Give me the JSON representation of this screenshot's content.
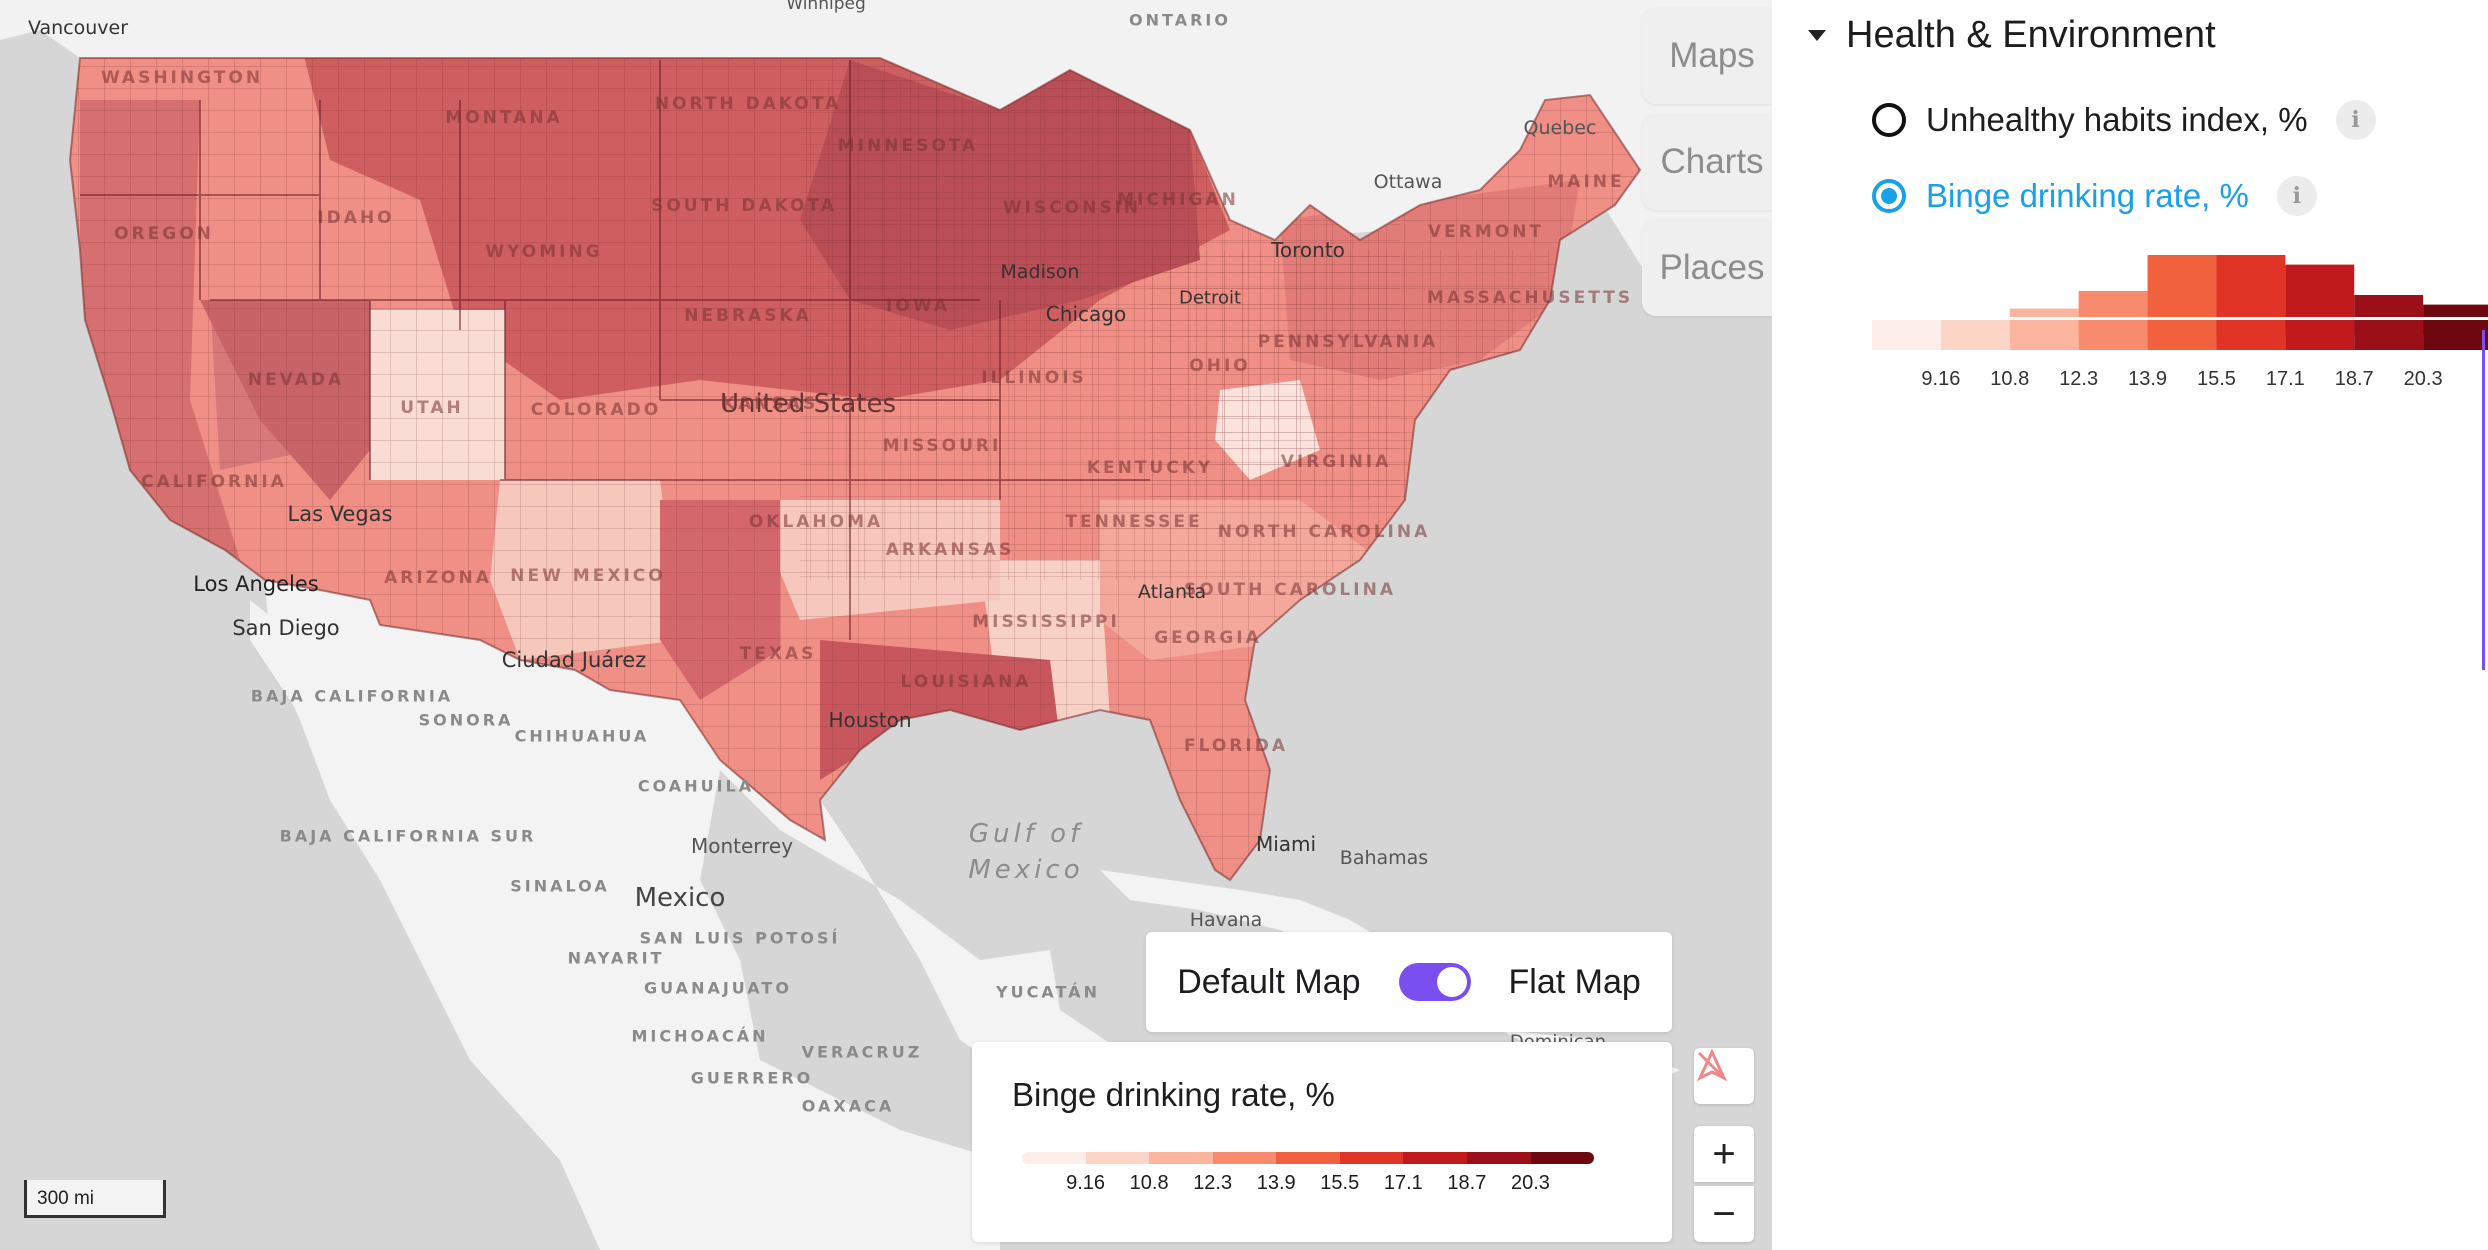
{
  "map": {
    "region_labels": [
      "ONTARIO",
      "SONORA",
      "CHIHUAHUA",
      "COAHUILA",
      "SINALOA",
      "SAN LUIS POTOSÍ",
      "NAYARIT",
      "GUANAJUATO",
      "MICHOACÁN",
      "GUERRERO",
      "OAXACA",
      "VERACRUZ",
      "YUCATÁN",
      "BAJA CALIFORNIA",
      "BAJA CALIFORNIA SUR"
    ],
    "state_labels": [
      "WASHINGTON",
      "MONTANA",
      "NORTH DAKOTA",
      "MINNESOTA",
      "OREGON",
      "IDAHO",
      "SOUTH DAKOTA",
      "WISCONSIN",
      "MICHIGAN",
      "WYOMING",
      "IOWA",
      "NEBRASKA",
      "NEVADA",
      "UTAH",
      "COLORADO",
      "ILLINOIS",
      "OHIO",
      "PENNSYLVANIA",
      "KANSAS",
      "MISSOURI",
      "KENTUCKY",
      "VIRGINIA",
      "CALIFORNIA",
      "OKLAHOMA",
      "TENNESSEE",
      "NORTH CAROLINA",
      "ARIZONA",
      "NEW MEXICO",
      "ARKANSAS",
      "SOUTH CAROLINA",
      "MISSISSIPPI",
      "GEORGIA",
      "TEXAS",
      "LOUISIANA",
      "FLORIDA",
      "VERMONT",
      "MAINE",
      "MASSACHUSETTS"
    ],
    "city_labels": [
      "Vancouver",
      "Winnipeg",
      "Quebec",
      "Ottawa",
      "Toronto",
      "Madison",
      "Detroit",
      "Chicago",
      "Las Vegas",
      "Los Angeles",
      "San Diego",
      "Ciudad Juárez",
      "Atlanta",
      "Houston",
      "Miami",
      "Bahamas",
      "Monterrey",
      "Havana",
      "Dominican"
    ],
    "country_labels": [
      "United States",
      "Mexico"
    ],
    "water_labels": [
      "Gulf of",
      "Mexico"
    ],
    "scale_label": "300 mi"
  },
  "tabs": {
    "maps": "Maps",
    "charts": "Charts",
    "places": "Places"
  },
  "toggle": {
    "left_label": "Default Map",
    "right_label": "Flat Map",
    "is_on": true
  },
  "legend": {
    "title": "Binge drinking rate, %",
    "ticks": [
      "9.16",
      "10.8",
      "12.3",
      "13.9",
      "15.5",
      "17.1",
      "18.7",
      "20.3"
    ],
    "colors": [
      "#fdeee9",
      "#fcd5c7",
      "#fbb49e",
      "#f88a6d",
      "#f2613e",
      "#e03426",
      "#c01a1d",
      "#9b0f19",
      "#6e0810"
    ]
  },
  "controls": {
    "zoom_in": "+",
    "zoom_out": "−",
    "compass_icon": "no-location-icon"
  },
  "panel": {
    "section_title": "Health & Environment",
    "options": [
      {
        "label": "Unhealthy habits index, %",
        "selected": false
      },
      {
        "label": "Binge drinking rate, %",
        "selected": true
      }
    ],
    "info_glyph": "i",
    "accent_color": "#1aa0e8",
    "histogram": {
      "ticks": [
        "9.16",
        "10.8",
        "12.3",
        "13.9",
        "15.5",
        "17.1",
        "18.7",
        "20.3"
      ],
      "relative_heights": [
        0.08,
        0.18,
        0.33,
        0.55,
        1.0,
        1.0,
        0.88,
        0.5,
        0.38
      ]
    }
  }
}
